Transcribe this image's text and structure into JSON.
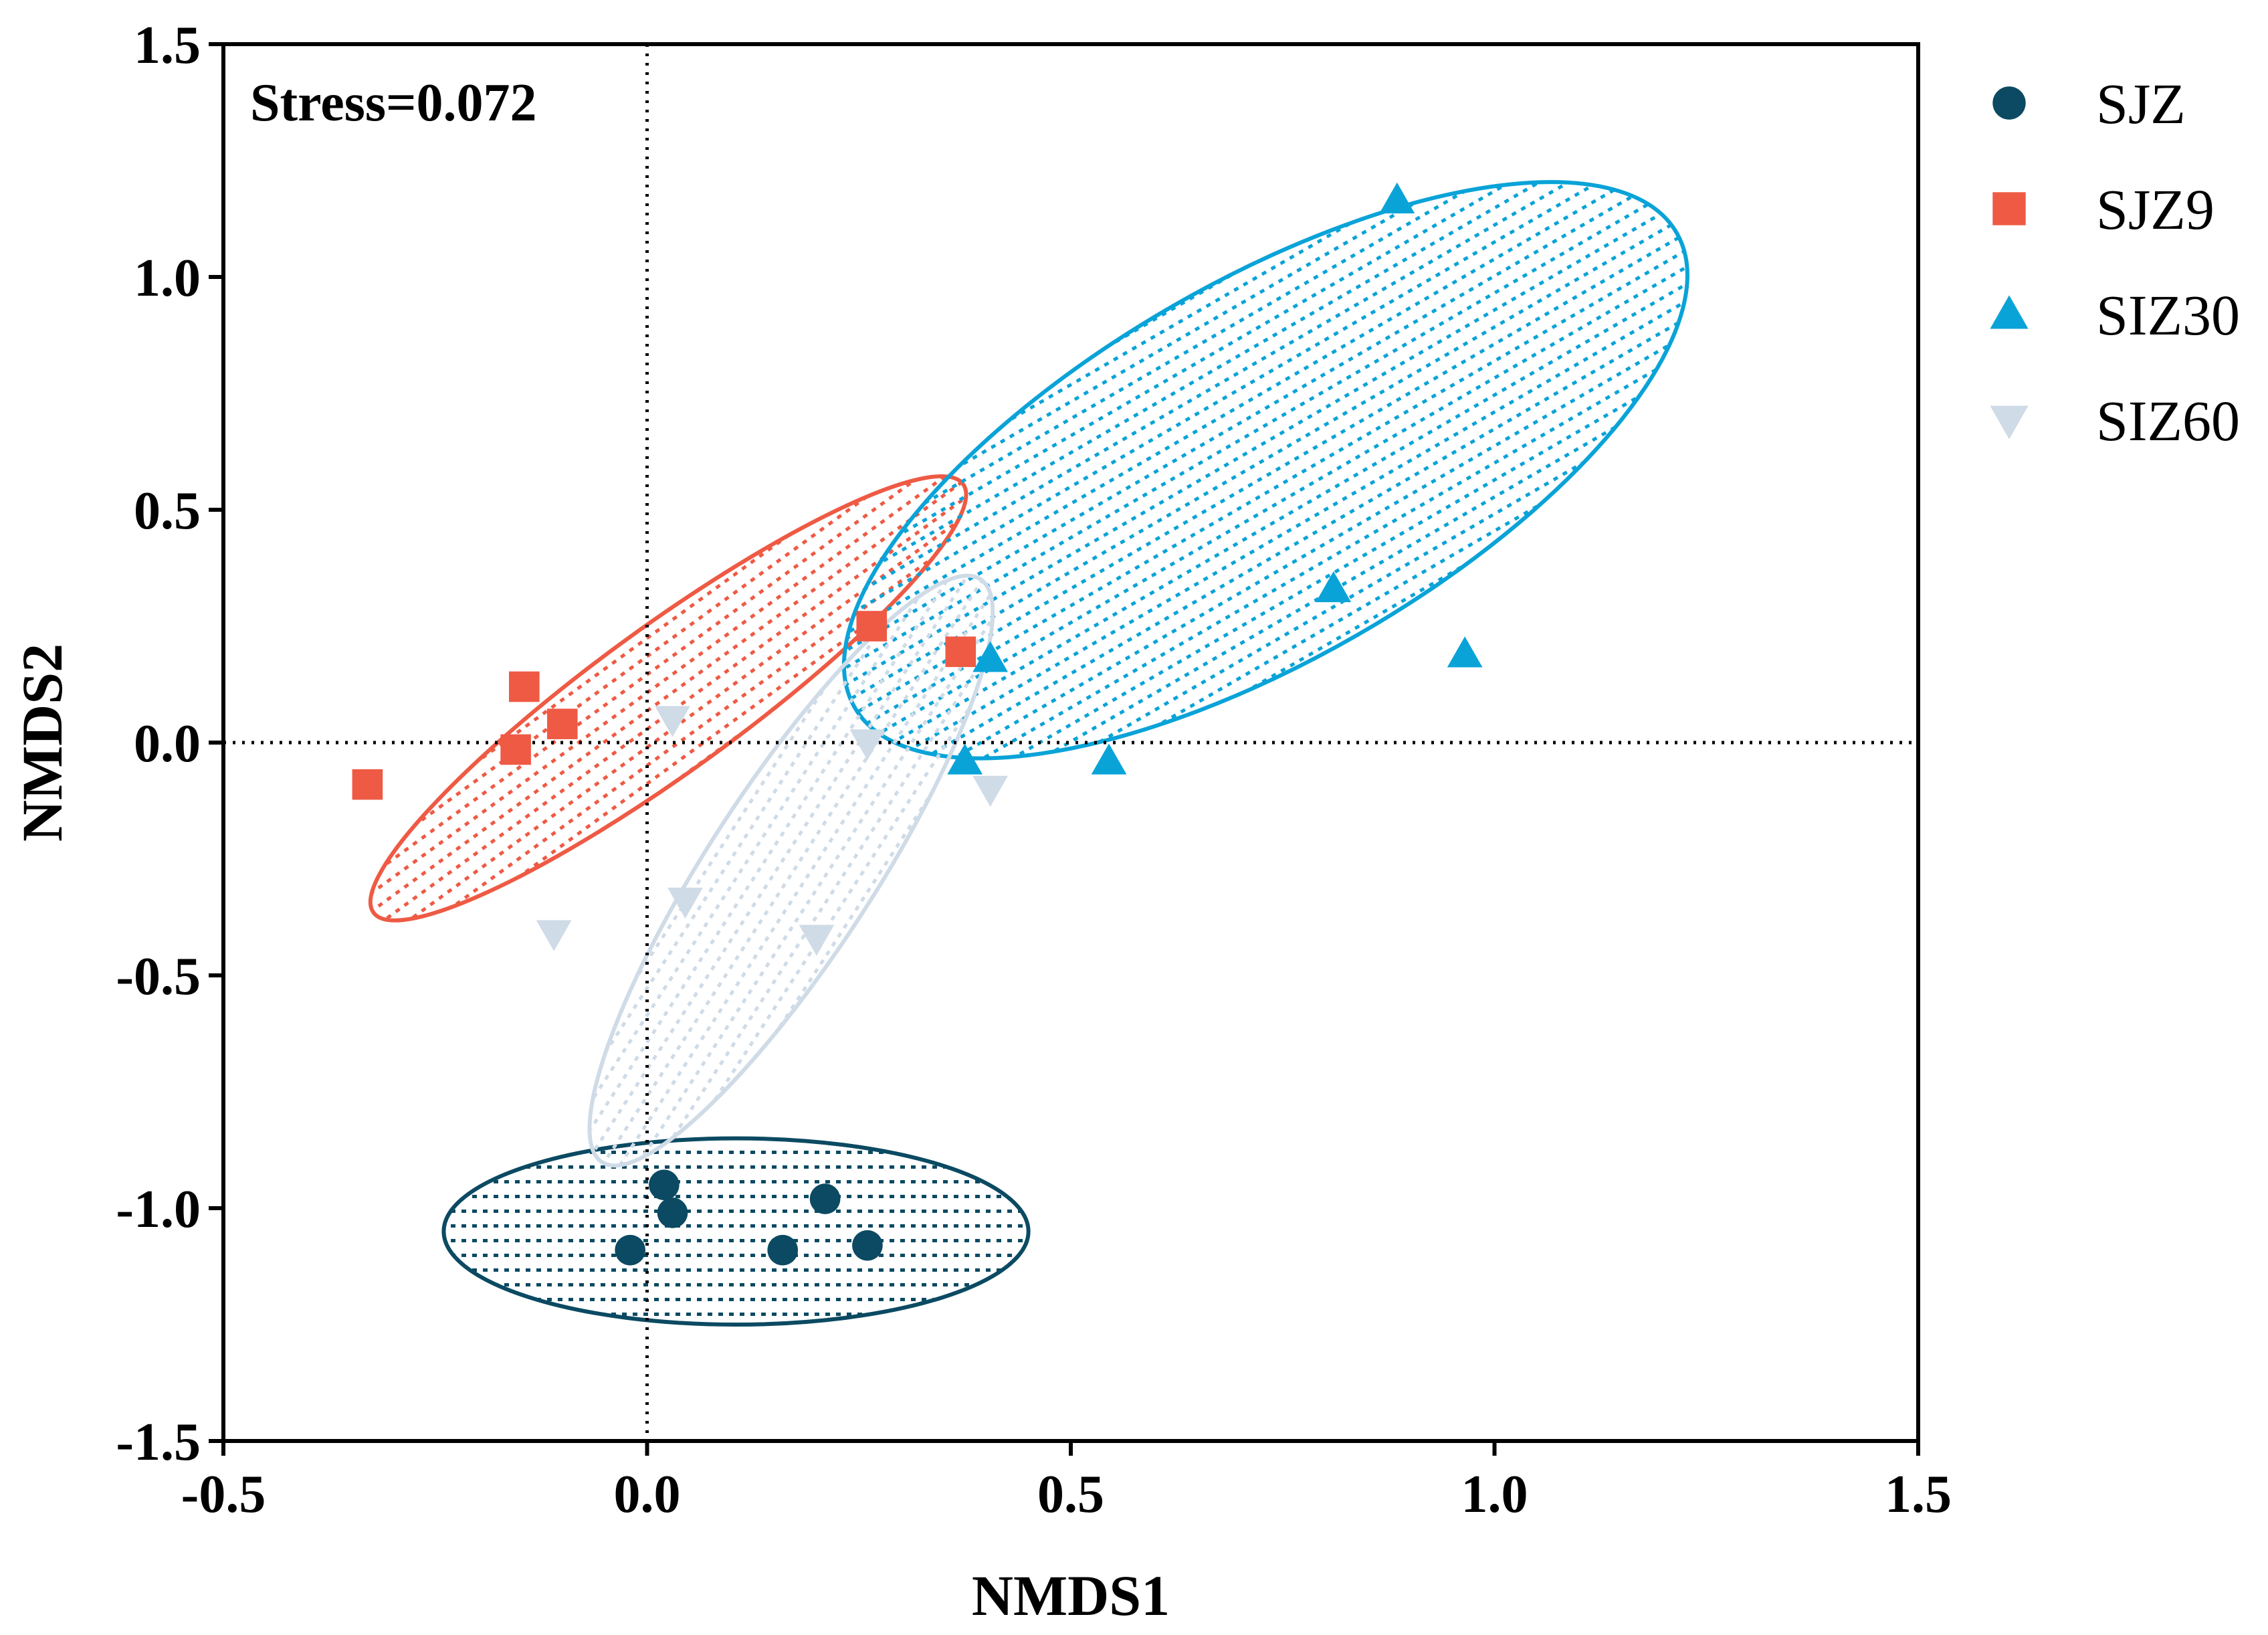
{
  "chart_data": {
    "type": "scatter",
    "title": "",
    "xlabel": "NMDS1",
    "ylabel": "NMDS2",
    "xlim": [
      -0.5,
      1.5
    ],
    "ylim": [
      -1.5,
      1.5
    ],
    "xticks": [
      -0.5,
      0.0,
      0.5,
      1.0,
      1.5
    ],
    "yticks": [
      -1.5,
      -1.0,
      -0.5,
      0.0,
      0.5,
      1.0,
      1.5
    ],
    "xtick_labels": [
      "-0.5",
      "0.0",
      "0.5",
      "1.0",
      "1.5"
    ],
    "ytick_labels": [
      "-1.5",
      "-1.0",
      "-0.5",
      "0.0",
      "0.5",
      "1.0",
      "1.5"
    ],
    "annotation": "Stress=0.072",
    "reference_lines": {
      "x": 0.0,
      "y": 0.0,
      "style": "dotted"
    },
    "legend_position": "right",
    "series": [
      {
        "name": "SJZ",
        "marker": "circle",
        "color": "#0b4a62",
        "points": [
          [
            -0.02,
            -1.09
          ],
          [
            0.02,
            -0.95
          ],
          [
            0.03,
            -1.01
          ],
          [
            0.16,
            -1.09
          ],
          [
            0.21,
            -0.98
          ],
          [
            0.26,
            -1.08
          ]
        ],
        "ellipse": {
          "center": [
            0.105,
            -1.05
          ],
          "rx": 0.345,
          "ry": 0.2,
          "rotation_deg": 0
        }
      },
      {
        "name": "SJZ9",
        "marker": "square",
        "color": "#ee5a44",
        "points": [
          [
            -0.33,
            -0.09
          ],
          [
            -0.155,
            -0.015
          ],
          [
            -0.145,
            0.12
          ],
          [
            -0.1,
            0.04
          ],
          [
            0.265,
            0.25
          ],
          [
            0.37,
            0.195
          ]
        ],
        "ellipse": {
          "center": [
            0.025,
            0.095
          ],
          "rx": 0.43,
          "ry": 0.155,
          "rotation_deg": 36
        }
      },
      {
        "name": "SIZ30",
        "marker": "triangle-up",
        "color": "#0aa3d8",
        "points": [
          [
            0.375,
            -0.04
          ],
          [
            0.405,
            0.18
          ],
          [
            0.545,
            -0.04
          ],
          [
            0.81,
            0.33
          ],
          [
            0.885,
            1.165
          ],
          [
            0.965,
            0.19
          ]
        ],
        "ellipse": {
          "center": [
            0.73,
            0.585
          ],
          "rx": 0.56,
          "ry": 0.405,
          "rotation_deg": 30
        }
      },
      {
        "name": "SIZ60",
        "marker": "triangle-down",
        "color": "#cfdbe6",
        "points": [
          [
            -0.11,
            -0.41
          ],
          [
            0.03,
            0.05
          ],
          [
            0.045,
            -0.34
          ],
          [
            0.2,
            -0.42
          ],
          [
            0.26,
            0.0
          ],
          [
            0.405,
            -0.1
          ]
        ],
        "ellipse": {
          "center": [
            0.17,
            -0.275
          ],
          "rx": 0.41,
          "ry": 0.178,
          "rotation_deg": 57
        }
      }
    ]
  }
}
